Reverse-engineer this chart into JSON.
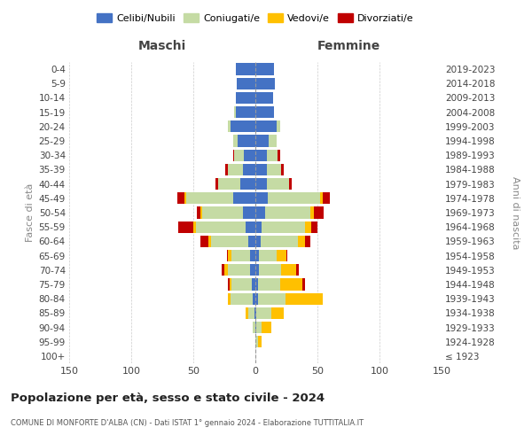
{
  "age_groups": [
    "100+",
    "95-99",
    "90-94",
    "85-89",
    "80-84",
    "75-79",
    "70-74",
    "65-69",
    "60-64",
    "55-59",
    "50-54",
    "45-49",
    "40-44",
    "35-39",
    "30-34",
    "25-29",
    "20-24",
    "15-19",
    "10-14",
    "5-9",
    "0-4"
  ],
  "birth_years": [
    "≤ 1923",
    "1924-1928",
    "1929-1933",
    "1934-1938",
    "1939-1943",
    "1944-1948",
    "1949-1953",
    "1954-1958",
    "1959-1963",
    "1964-1968",
    "1969-1973",
    "1974-1978",
    "1979-1983",
    "1984-1988",
    "1989-1993",
    "1994-1998",
    "1999-2003",
    "2004-2008",
    "2009-2013",
    "2014-2018",
    "2019-2023"
  ],
  "colors": {
    "celibi": "#4472c4",
    "coniugati": "#c5dba4",
    "vedovi": "#ffc000",
    "divorziati": "#c00000"
  },
  "maschi": {
    "celibi": [
      0,
      0,
      0,
      1,
      2,
      3,
      4,
      4,
      6,
      8,
      10,
      18,
      12,
      10,
      9,
      14,
      20,
      16,
      16,
      15,
      16
    ],
    "coniugati": [
      0,
      0,
      2,
      5,
      18,
      16,
      18,
      15,
      30,
      40,
      33,
      38,
      18,
      12,
      8,
      4,
      2,
      1,
      0,
      0,
      0
    ],
    "vedovi": [
      0,
      0,
      0,
      2,
      2,
      2,
      3,
      3,
      2,
      2,
      1,
      1,
      0,
      0,
      0,
      0,
      0,
      0,
      0,
      0,
      0
    ],
    "divorziati": [
      0,
      0,
      0,
      0,
      0,
      1,
      2,
      1,
      6,
      12,
      3,
      6,
      2,
      2,
      1,
      0,
      0,
      0,
      0,
      0,
      0
    ]
  },
  "femmine": {
    "celibi": [
      0,
      0,
      1,
      1,
      2,
      2,
      3,
      3,
      4,
      5,
      8,
      10,
      9,
      9,
      9,
      11,
      17,
      15,
      14,
      16,
      15
    ],
    "coniugati": [
      0,
      2,
      4,
      12,
      22,
      18,
      18,
      14,
      30,
      35,
      36,
      42,
      18,
      12,
      9,
      6,
      3,
      0,
      0,
      0,
      0
    ],
    "vedovi": [
      0,
      3,
      8,
      10,
      30,
      18,
      12,
      8,
      6,
      5,
      3,
      2,
      0,
      0,
      0,
      0,
      0,
      0,
      0,
      0,
      0
    ],
    "divorziati": [
      0,
      0,
      0,
      0,
      0,
      2,
      2,
      1,
      4,
      5,
      8,
      6,
      2,
      2,
      2,
      0,
      0,
      0,
      0,
      0,
      0
    ]
  },
  "title": "Popolazione per età, sesso e stato civile - 2024",
  "subtitle": "COMUNE DI MONFORTE D'ALBA (CN) - Dati ISTAT 1° gennaio 2024 - Elaborazione TUTTITALIA.IT",
  "xlabel_left": "Maschi",
  "xlabel_right": "Femmine",
  "ylabel_left": "Fasce di età",
  "ylabel_right": "Anni di nascita",
  "xlim": 150,
  "legend_labels": [
    "Celibi/Nubili",
    "Coniugati/e",
    "Vedovi/e",
    "Divorziati/e"
  ],
  "background_color": "#ffffff",
  "grid_color": "#cccccc"
}
